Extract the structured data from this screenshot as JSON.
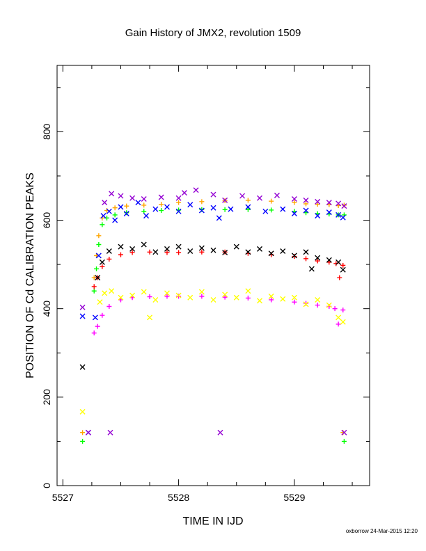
{
  "chart_data": {
    "type": "scatter",
    "title": "Gain History of JMX2, revolution 1509",
    "xlabel": "TIME IN IJD",
    "ylabel": "POSITION OF Cd CALIBRATION PEAKS",
    "xlim": [
      5526.95,
      5529.65
    ],
    "ylim": [
      0,
      950
    ],
    "x_ticks": [
      5527,
      5528,
      5529
    ],
    "y_ticks": [
      0,
      200,
      400,
      600,
      800
    ],
    "grid": false,
    "legend": "none",
    "footer": "oxborrow 24-Mar-2015 12:20",
    "series": [
      {
        "color": "#ffa500",
        "marker": "plus",
        "points": [
          [
            5527.17,
            120
          ],
          [
            5527.27,
            470
          ],
          [
            5527.29,
            520
          ],
          [
            5527.31,
            565
          ],
          [
            5527.34,
            605
          ],
          [
            5527.38,
            622
          ],
          [
            5527.45,
            628
          ],
          [
            5527.55,
            632
          ],
          [
            5527.7,
            634
          ],
          [
            5527.85,
            636
          ],
          [
            5528.0,
            640
          ],
          [
            5528.2,
            642
          ],
          [
            5528.4,
            644
          ],
          [
            5528.6,
            645
          ],
          [
            5528.8,
            643
          ],
          [
            5529.0,
            640
          ],
          [
            5529.1,
            637
          ],
          [
            5529.2,
            636
          ],
          [
            5529.3,
            635
          ],
          [
            5529.38,
            633
          ],
          [
            5529.43,
            634
          ],
          [
            5529.42,
            120
          ]
        ]
      },
      {
        "color": "#00ff00",
        "marker": "plus",
        "points": [
          [
            5527.17,
            100
          ],
          [
            5527.27,
            440
          ],
          [
            5527.29,
            490
          ],
          [
            5527.31,
            545
          ],
          [
            5527.34,
            590
          ],
          [
            5527.38,
            605
          ],
          [
            5527.45,
            612
          ],
          [
            5527.55,
            617
          ],
          [
            5527.7,
            620
          ],
          [
            5527.85,
            622
          ],
          [
            5528.0,
            623
          ],
          [
            5528.2,
            624
          ],
          [
            5528.4,
            624
          ],
          [
            5528.6,
            624
          ],
          [
            5528.8,
            623
          ],
          [
            5529.0,
            620
          ],
          [
            5529.1,
            617
          ],
          [
            5529.2,
            615
          ],
          [
            5529.3,
            614
          ],
          [
            5529.38,
            612
          ],
          [
            5529.43,
            612
          ],
          [
            5529.43,
            100
          ]
        ]
      },
      {
        "color": "#ff0000",
        "marker": "plus",
        "points": [
          [
            5527.27,
            450
          ],
          [
            5527.3,
            470
          ],
          [
            5527.34,
            495
          ],
          [
            5527.4,
            512
          ],
          [
            5527.5,
            522
          ],
          [
            5527.6,
            527
          ],
          [
            5527.75,
            528
          ],
          [
            5527.9,
            527
          ],
          [
            5528.0,
            527
          ],
          [
            5528.2,
            528
          ],
          [
            5528.4,
            528
          ],
          [
            5528.6,
            525
          ],
          [
            5528.8,
            522
          ],
          [
            5529.0,
            518
          ],
          [
            5529.1,
            513
          ],
          [
            5529.2,
            508
          ],
          [
            5529.3,
            505
          ],
          [
            5529.36,
            502
          ],
          [
            5529.39,
            470
          ],
          [
            5529.42,
            498
          ]
        ]
      },
      {
        "color": "#ff00ff",
        "marker": "plus",
        "points": [
          [
            5527.27,
            345
          ],
          [
            5527.3,
            360
          ],
          [
            5527.34,
            385
          ],
          [
            5527.4,
            405
          ],
          [
            5527.5,
            420
          ],
          [
            5527.6,
            425
          ],
          [
            5527.75,
            427
          ],
          [
            5527.9,
            428
          ],
          [
            5528.0,
            428
          ],
          [
            5528.2,
            428
          ],
          [
            5528.4,
            426
          ],
          [
            5528.6,
            424
          ],
          [
            5528.8,
            420
          ],
          [
            5529.0,
            415
          ],
          [
            5529.1,
            412
          ],
          [
            5529.2,
            408
          ],
          [
            5529.3,
            405
          ],
          [
            5529.35,
            400
          ],
          [
            5529.38,
            365
          ],
          [
            5529.42,
            397
          ]
        ]
      },
      {
        "color": "#0000ff",
        "marker": "cross",
        "points": [
          [
            5527.17,
            383
          ],
          [
            5527.22,
            120
          ],
          [
            5527.28,
            380
          ],
          [
            5527.31,
            520
          ],
          [
            5527.35,
            610
          ],
          [
            5527.4,
            620
          ],
          [
            5527.45,
            600
          ],
          [
            5527.5,
            630
          ],
          [
            5527.55,
            615
          ],
          [
            5527.65,
            640
          ],
          [
            5527.72,
            610
          ],
          [
            5527.8,
            625
          ],
          [
            5527.9,
            630
          ],
          [
            5528.0,
            620
          ],
          [
            5528.1,
            635
          ],
          [
            5528.2,
            622
          ],
          [
            5528.3,
            628
          ],
          [
            5528.35,
            605
          ],
          [
            5528.45,
            625
          ],
          [
            5528.6,
            630
          ],
          [
            5528.75,
            620
          ],
          [
            5528.9,
            625
          ],
          [
            5529.0,
            615
          ],
          [
            5529.1,
            622
          ],
          [
            5529.2,
            610
          ],
          [
            5529.3,
            618
          ],
          [
            5529.38,
            612
          ],
          [
            5529.42,
            606
          ]
        ]
      },
      {
        "color": "#9400d3",
        "marker": "cross",
        "points": [
          [
            5527.17,
            403
          ],
          [
            5527.22,
            120
          ],
          [
            5527.41,
            120
          ],
          [
            5528.36,
            120
          ],
          [
            5529.43,
            120
          ],
          [
            5527.36,
            640
          ],
          [
            5527.42,
            660
          ],
          [
            5527.5,
            655
          ],
          [
            5527.6,
            650
          ],
          [
            5527.7,
            648
          ],
          [
            5527.85,
            652
          ],
          [
            5528.0,
            650
          ],
          [
            5528.05,
            662
          ],
          [
            5528.15,
            668
          ],
          [
            5528.3,
            658
          ],
          [
            5528.4,
            645
          ],
          [
            5528.55,
            655
          ],
          [
            5528.7,
            650
          ],
          [
            5528.85,
            656
          ],
          [
            5529.0,
            648
          ],
          [
            5529.1,
            645
          ],
          [
            5529.2,
            642
          ],
          [
            5529.3,
            640
          ],
          [
            5529.38,
            638
          ],
          [
            5529.43,
            632
          ]
        ]
      },
      {
        "color": "#000000",
        "marker": "cross",
        "points": [
          [
            5527.17,
            268
          ],
          [
            5527.3,
            470
          ],
          [
            5527.34,
            505
          ],
          [
            5527.4,
            530
          ],
          [
            5527.5,
            540
          ],
          [
            5527.6,
            535
          ],
          [
            5527.7,
            545
          ],
          [
            5527.8,
            528
          ],
          [
            5527.9,
            535
          ],
          [
            5528.0,
            540
          ],
          [
            5528.1,
            530
          ],
          [
            5528.2,
            537
          ],
          [
            5528.3,
            532
          ],
          [
            5528.4,
            527
          ],
          [
            5528.5,
            540
          ],
          [
            5528.6,
            528
          ],
          [
            5528.7,
            535
          ],
          [
            5528.8,
            525
          ],
          [
            5528.9,
            530
          ],
          [
            5529.0,
            520
          ],
          [
            5529.1,
            528
          ],
          [
            5529.15,
            490
          ],
          [
            5529.2,
            515
          ],
          [
            5529.3,
            510
          ],
          [
            5529.38,
            505
          ],
          [
            5529.42,
            488
          ]
        ]
      },
      {
        "color": "#ffff00",
        "marker": "cross",
        "points": [
          [
            5527.17,
            167
          ],
          [
            5527.32,
            415
          ],
          [
            5527.36,
            435
          ],
          [
            5527.42,
            440
          ],
          [
            5527.5,
            425
          ],
          [
            5527.6,
            430
          ],
          [
            5527.7,
            438
          ],
          [
            5527.75,
            380
          ],
          [
            5527.8,
            420
          ],
          [
            5527.9,
            435
          ],
          [
            5528.0,
            430
          ],
          [
            5528.1,
            425
          ],
          [
            5528.2,
            438
          ],
          [
            5528.3,
            420
          ],
          [
            5528.4,
            432
          ],
          [
            5528.5,
            425
          ],
          [
            5528.6,
            440
          ],
          [
            5528.7,
            418
          ],
          [
            5528.8,
            428
          ],
          [
            5528.9,
            422
          ],
          [
            5529.0,
            425
          ],
          [
            5529.1,
            410
          ],
          [
            5529.2,
            420
          ],
          [
            5529.3,
            408
          ],
          [
            5529.38,
            380
          ],
          [
            5529.42,
            370
          ]
        ]
      }
    ]
  }
}
